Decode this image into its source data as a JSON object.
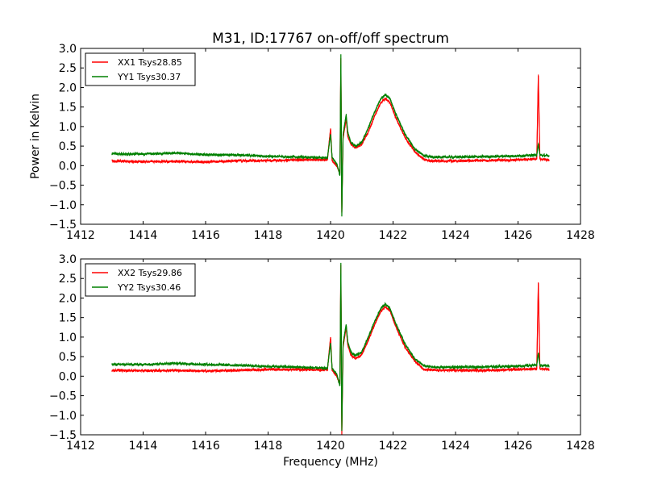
{
  "figure": {
    "title": "M31, ID:17767 on-off/off spectrum",
    "ylabel": "Power in Kelvin",
    "xlabel": "Frequency (MHz)"
  },
  "chart_data": [
    {
      "type": "line",
      "title": "M31, ID:17767 on-off/off spectrum",
      "xlabel": "",
      "ylabel": "Power in Kelvin",
      "xlim": [
        1412,
        1428
      ],
      "ylim": [
        -1.5,
        3.0
      ],
      "xticks": [
        "1412",
        "1414",
        "1416",
        "1418",
        "1420",
        "1422",
        "1424",
        "1426",
        "1428"
      ],
      "yticks": [
        "−1.5",
        "−1.0",
        "−0.5",
        "0.0",
        "0.5",
        "1.0",
        "1.5",
        "2.0",
        "2.5",
        "3.0"
      ],
      "grid": false,
      "legend": "top-left",
      "series": [
        {
          "name": "XX1 Tsys28.85",
          "color": "#ff0000",
          "x": [
            1413.0,
            1414.0,
            1415.0,
            1416.0,
            1417.0,
            1418.0,
            1419.0,
            1419.9,
            1420.0,
            1420.05,
            1420.2,
            1420.3,
            1420.33,
            1420.36,
            1420.4,
            1420.45,
            1420.5,
            1420.55,
            1420.65,
            1420.8,
            1421.0,
            1421.2,
            1421.4,
            1421.6,
            1421.75,
            1421.9,
            1422.1,
            1422.4,
            1422.7,
            1423.0,
            1423.3,
            1424.0,
            1425.0,
            1426.0,
            1426.6,
            1426.65,
            1426.7,
            1427.0
          ],
          "values": [
            0.12,
            0.1,
            0.11,
            0.09,
            0.12,
            0.13,
            0.15,
            0.15,
            0.95,
            0.12,
            0.0,
            -0.2,
            2.75,
            -1.2,
            0.7,
            0.95,
            1.2,
            0.75,
            0.55,
            0.45,
            0.55,
            0.85,
            1.25,
            1.6,
            1.72,
            1.62,
            1.2,
            0.7,
            0.35,
            0.15,
            0.12,
            0.12,
            0.13,
            0.15,
            0.17,
            2.3,
            0.17,
            0.15
          ]
        },
        {
          "name": "YY1 Tsys30.37",
          "color": "#008000",
          "x": [
            1413.0,
            1414.0,
            1415.0,
            1416.0,
            1417.0,
            1418.0,
            1419.0,
            1419.9,
            1420.0,
            1420.05,
            1420.2,
            1420.3,
            1420.33,
            1420.36,
            1420.4,
            1420.45,
            1420.5,
            1420.55,
            1420.65,
            1420.8,
            1421.0,
            1421.2,
            1421.4,
            1421.6,
            1421.75,
            1421.9,
            1422.1,
            1422.4,
            1422.7,
            1423.0,
            1423.3,
            1424.0,
            1425.0,
            1426.0,
            1426.6,
            1426.65,
            1426.7,
            1427.0
          ],
          "values": [
            0.3,
            0.3,
            0.32,
            0.28,
            0.27,
            0.24,
            0.22,
            0.2,
            0.8,
            0.2,
            0.05,
            -0.25,
            2.85,
            -1.3,
            0.8,
            1.05,
            1.3,
            0.85,
            0.6,
            0.5,
            0.6,
            0.95,
            1.35,
            1.7,
            1.82,
            1.72,
            1.3,
            0.78,
            0.42,
            0.25,
            0.22,
            0.22,
            0.23,
            0.25,
            0.27,
            0.55,
            0.27,
            0.25
          ]
        }
      ]
    },
    {
      "type": "line",
      "title": "",
      "xlabel": "Frequency (MHz)",
      "ylabel": "",
      "xlim": [
        1412,
        1428
      ],
      "ylim": [
        -1.5,
        3.0
      ],
      "xticks": [
        "1412",
        "1414",
        "1416",
        "1418",
        "1420",
        "1422",
        "1424",
        "1426",
        "1428"
      ],
      "yticks": [
        "−1.5",
        "−1.0",
        "−0.5",
        "0.0",
        "0.5",
        "1.0",
        "1.5",
        "2.0",
        "2.5",
        "3.0"
      ],
      "grid": false,
      "legend": "top-left",
      "series": [
        {
          "name": "XX2 Tsys29.86",
          "color": "#ff0000",
          "x": [
            1413.0,
            1414.0,
            1415.0,
            1416.0,
            1417.0,
            1418.0,
            1419.0,
            1419.9,
            1420.0,
            1420.05,
            1420.2,
            1420.3,
            1420.33,
            1420.36,
            1420.4,
            1420.45,
            1420.5,
            1420.55,
            1420.65,
            1420.8,
            1421.0,
            1421.2,
            1421.4,
            1421.6,
            1421.75,
            1421.9,
            1422.1,
            1422.4,
            1422.7,
            1423.0,
            1423.3,
            1424.0,
            1425.0,
            1426.0,
            1426.6,
            1426.65,
            1426.7,
            1427.0
          ],
          "values": [
            0.15,
            0.14,
            0.15,
            0.13,
            0.15,
            0.17,
            0.17,
            0.16,
            1.0,
            0.15,
            0.0,
            -0.2,
            2.85,
            -1.5,
            0.75,
            1.0,
            1.25,
            0.8,
            0.55,
            0.45,
            0.55,
            0.9,
            1.3,
            1.65,
            1.78,
            1.68,
            1.25,
            0.72,
            0.38,
            0.17,
            0.15,
            0.15,
            0.15,
            0.17,
            0.19,
            2.38,
            0.19,
            0.17
          ]
        },
        {
          "name": "YY2 Tsys30.46",
          "color": "#008000",
          "x": [
            1413.0,
            1414.0,
            1415.0,
            1416.0,
            1417.0,
            1418.0,
            1419.0,
            1419.9,
            1420.0,
            1420.05,
            1420.2,
            1420.3,
            1420.33,
            1420.36,
            1420.4,
            1420.45,
            1420.5,
            1420.55,
            1420.65,
            1420.8,
            1421.0,
            1421.2,
            1421.4,
            1421.6,
            1421.75,
            1421.9,
            1422.1,
            1422.4,
            1422.7,
            1423.0,
            1423.3,
            1424.0,
            1425.0,
            1426.0,
            1426.6,
            1426.65,
            1426.7,
            1427.0
          ],
          "values": [
            0.3,
            0.3,
            0.33,
            0.3,
            0.28,
            0.25,
            0.23,
            0.2,
            0.85,
            0.2,
            0.05,
            -0.25,
            2.9,
            -1.4,
            0.82,
            1.08,
            1.32,
            0.88,
            0.62,
            0.52,
            0.62,
            0.98,
            1.38,
            1.72,
            1.85,
            1.74,
            1.32,
            0.8,
            0.44,
            0.26,
            0.23,
            0.23,
            0.24,
            0.26,
            0.28,
            0.6,
            0.28,
            0.26
          ]
        }
      ]
    }
  ]
}
